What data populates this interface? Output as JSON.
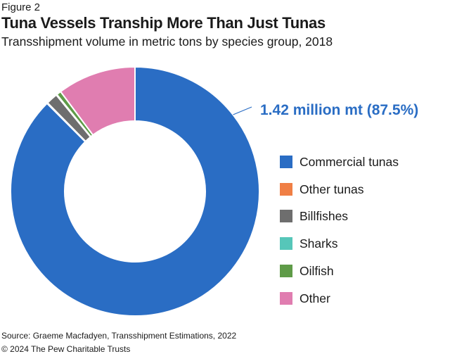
{
  "figure_label": "Figure 2",
  "title": "Tuna Vessels Tranship More Than Just Tunas",
  "subtitle": "Transshipment volume in metric tons by species group, 2018",
  "source": "Source: Graeme Macfadyen, Transshipment Estimations, 2022",
  "copyright": "© 2024 The Pew Charitable Trusts",
  "chart_data": {
    "type": "pie",
    "variant": "donut",
    "title": "Tuna Vessels Tranship More Than Just Tunas",
    "subtitle": "Transshipment volume in metric tons by species group, 2018",
    "unit": "percent of total",
    "labels": [
      "Commercial tunas",
      "Other tunas",
      "Billfishes",
      "Sharks",
      "Oilfish",
      "Other"
    ],
    "values": [
      87.5,
      0.1,
      1.5,
      0.1,
      0.6,
      10.2
    ],
    "colors": [
      "#2a6dc4",
      "#f07f45",
      "#6e6e6e",
      "#56c6b9",
      "#5f9b48",
      "#e07db0"
    ],
    "annotation": "1.42 million mt (87.5%)",
    "legend_position": "right"
  }
}
